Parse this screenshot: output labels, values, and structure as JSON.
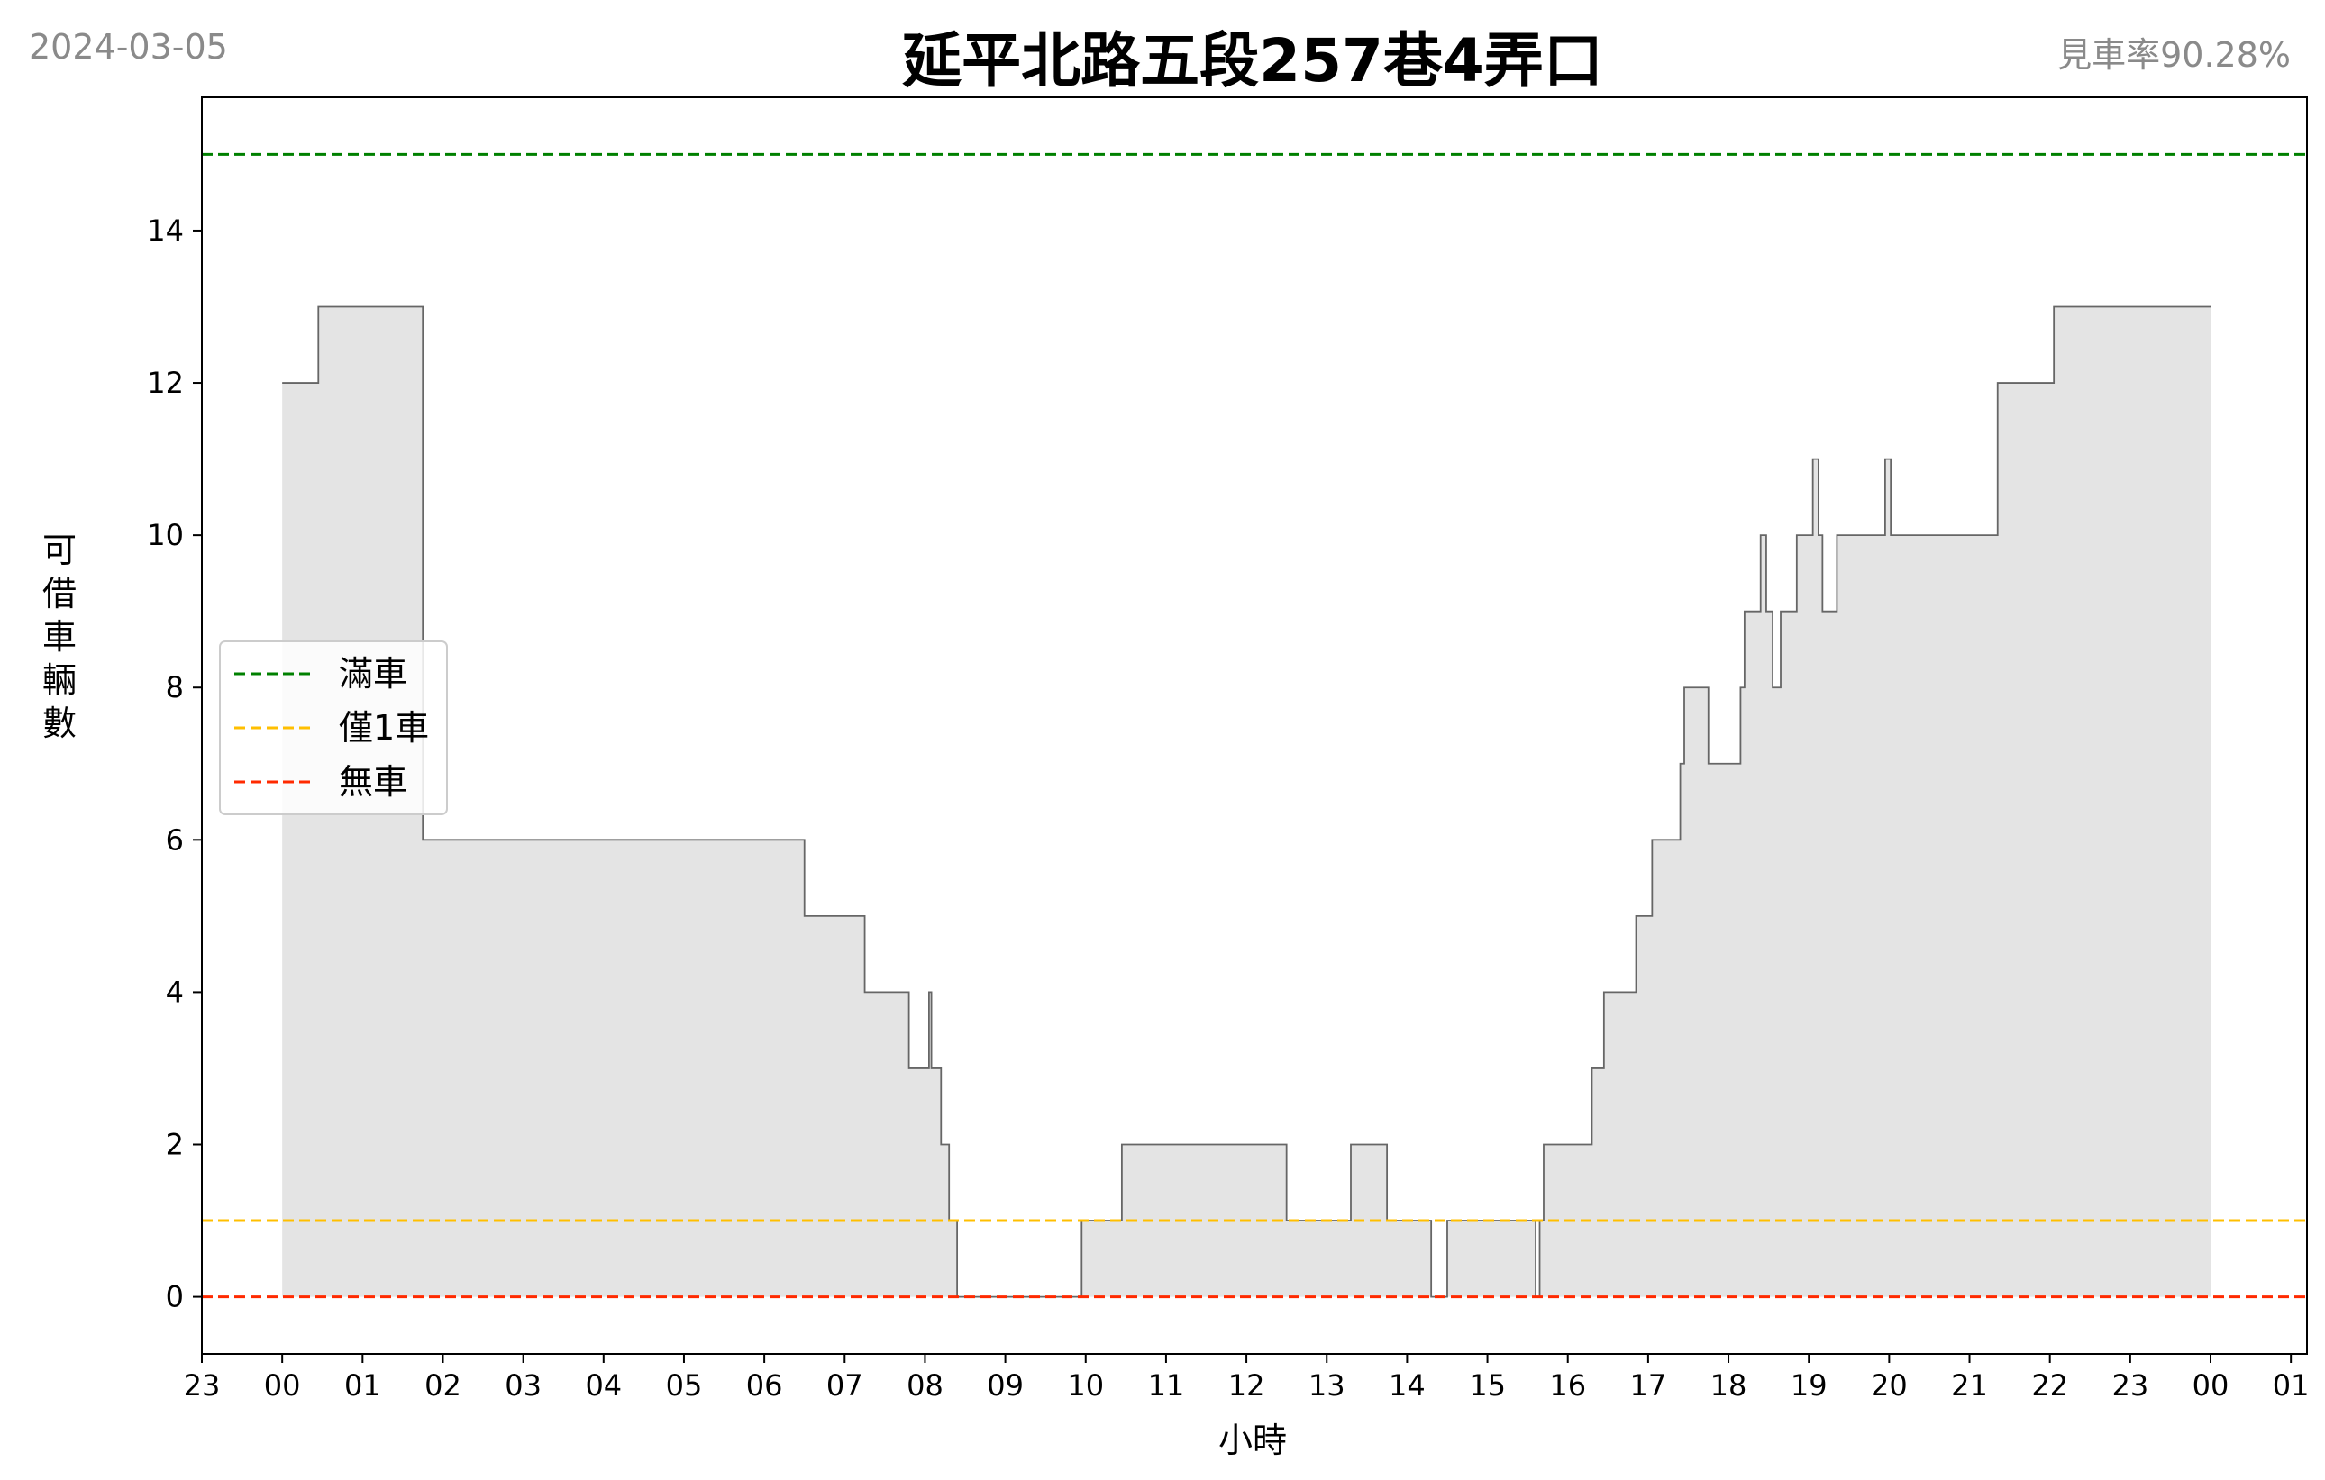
{
  "header": {
    "date": "2024-03-05",
    "title": "延平北路五段257巷4弄口",
    "rate": "見車率90.28%"
  },
  "chart_data": {
    "type": "area",
    "xlabel": "小時",
    "ylabel": "可借車輛數",
    "xlim": [
      -1,
      25.2
    ],
    "ylim": [
      -0.75,
      15.75
    ],
    "x_ticks": [
      {
        "x": -1,
        "label": "23"
      },
      {
        "x": 0,
        "label": "00"
      },
      {
        "x": 1,
        "label": "01"
      },
      {
        "x": 2,
        "label": "02"
      },
      {
        "x": 3,
        "label": "03"
      },
      {
        "x": 4,
        "label": "04"
      },
      {
        "x": 5,
        "label": "05"
      },
      {
        "x": 6,
        "label": "06"
      },
      {
        "x": 7,
        "label": "07"
      },
      {
        "x": 8,
        "label": "08"
      },
      {
        "x": 9,
        "label": "09"
      },
      {
        "x": 10,
        "label": "10"
      },
      {
        "x": 11,
        "label": "11"
      },
      {
        "x": 12,
        "label": "12"
      },
      {
        "x": 13,
        "label": "13"
      },
      {
        "x": 14,
        "label": "14"
      },
      {
        "x": 15,
        "label": "15"
      },
      {
        "x": 16,
        "label": "16"
      },
      {
        "x": 17,
        "label": "17"
      },
      {
        "x": 18,
        "label": "18"
      },
      {
        "x": 19,
        "label": "19"
      },
      {
        "x": 20,
        "label": "20"
      },
      {
        "x": 21,
        "label": "21"
      },
      {
        "x": 22,
        "label": "22"
      },
      {
        "x": 23,
        "label": "23"
      },
      {
        "x": 24,
        "label": "00"
      },
      {
        "x": 25,
        "label": "01"
      }
    ],
    "y_ticks": [
      0,
      2,
      4,
      6,
      8,
      10,
      12,
      14
    ],
    "reference_lines": [
      {
        "name": "滿車",
        "y": 15,
        "color": "#008000"
      },
      {
        "name": "僅1車",
        "y": 1,
        "color": "#ffbf00"
      },
      {
        "name": "無車",
        "y": 0,
        "color": "#ff2a00"
      }
    ],
    "legend_position": "center-left",
    "fill_color": "#e4e4e4",
    "line_color": "#666666",
    "series": [
      {
        "step": "post",
        "points": [
          [
            0.0,
            12
          ],
          [
            0.45,
            13
          ],
          [
            1.75,
            6
          ],
          [
            6.5,
            5
          ],
          [
            7.25,
            4
          ],
          [
            7.8,
            3
          ],
          [
            8.05,
            4
          ],
          [
            8.08,
            3
          ],
          [
            8.2,
            2
          ],
          [
            8.3,
            1
          ],
          [
            8.4,
            0
          ],
          [
            9.95,
            1
          ],
          [
            10.45,
            2
          ],
          [
            12.5,
            1
          ],
          [
            13.3,
            2
          ],
          [
            13.75,
            1
          ],
          [
            14.3,
            0
          ],
          [
            14.5,
            1
          ],
          [
            15.6,
            0
          ],
          [
            15.65,
            1
          ],
          [
            15.7,
            2
          ],
          [
            16.3,
            3
          ],
          [
            16.45,
            4
          ],
          [
            16.85,
            5
          ],
          [
            17.05,
            6
          ],
          [
            17.4,
            7
          ],
          [
            17.45,
            8
          ],
          [
            17.75,
            7
          ],
          [
            18.15,
            8
          ],
          [
            18.2,
            9
          ],
          [
            18.4,
            10
          ],
          [
            18.47,
            9
          ],
          [
            18.55,
            8
          ],
          [
            18.65,
            9
          ],
          [
            18.85,
            10
          ],
          [
            19.05,
            11
          ],
          [
            19.12,
            10
          ],
          [
            19.17,
            9
          ],
          [
            19.35,
            10
          ],
          [
            19.95,
            11
          ],
          [
            20.02,
            10
          ],
          [
            21.35,
            12
          ],
          [
            22.05,
            13
          ],
          [
            24.0,
            13
          ]
        ]
      }
    ]
  }
}
